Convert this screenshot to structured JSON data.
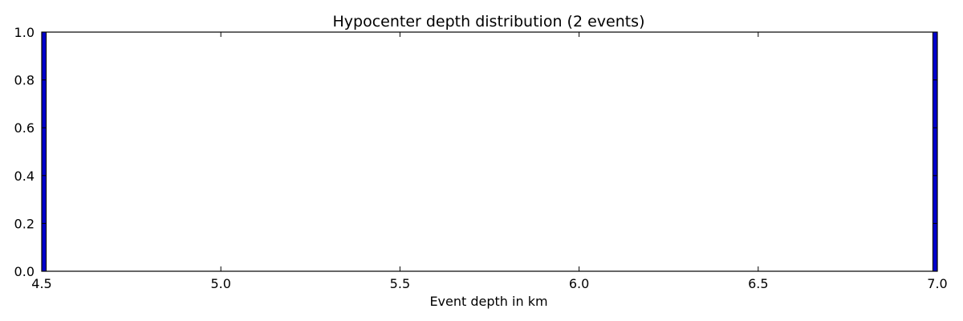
{
  "chart_data": {
    "type": "bar",
    "title": "Hypocenter depth distribution (2 events)",
    "xlabel": "Event depth in km",
    "ylabel": "",
    "xlim": [
      4.5,
      7.0
    ],
    "ylim": [
      0.0,
      1.0
    ],
    "xticks": [
      "4.5",
      "5.0",
      "5.5",
      "6.0",
      "6.5",
      "7.0"
    ],
    "yticks": [
      "0.0",
      "0.2",
      "0.4",
      "0.6",
      "0.8",
      "1.0"
    ],
    "bars": [
      {
        "x0": 4.5,
        "x1": 4.5125,
        "value": 1.0
      },
      {
        "x0": 6.9875,
        "x1": 7.0,
        "value": 1.0
      }
    ],
    "grid": false,
    "bar_color": "#0000cc",
    "bar_edge_color": "#000000"
  }
}
